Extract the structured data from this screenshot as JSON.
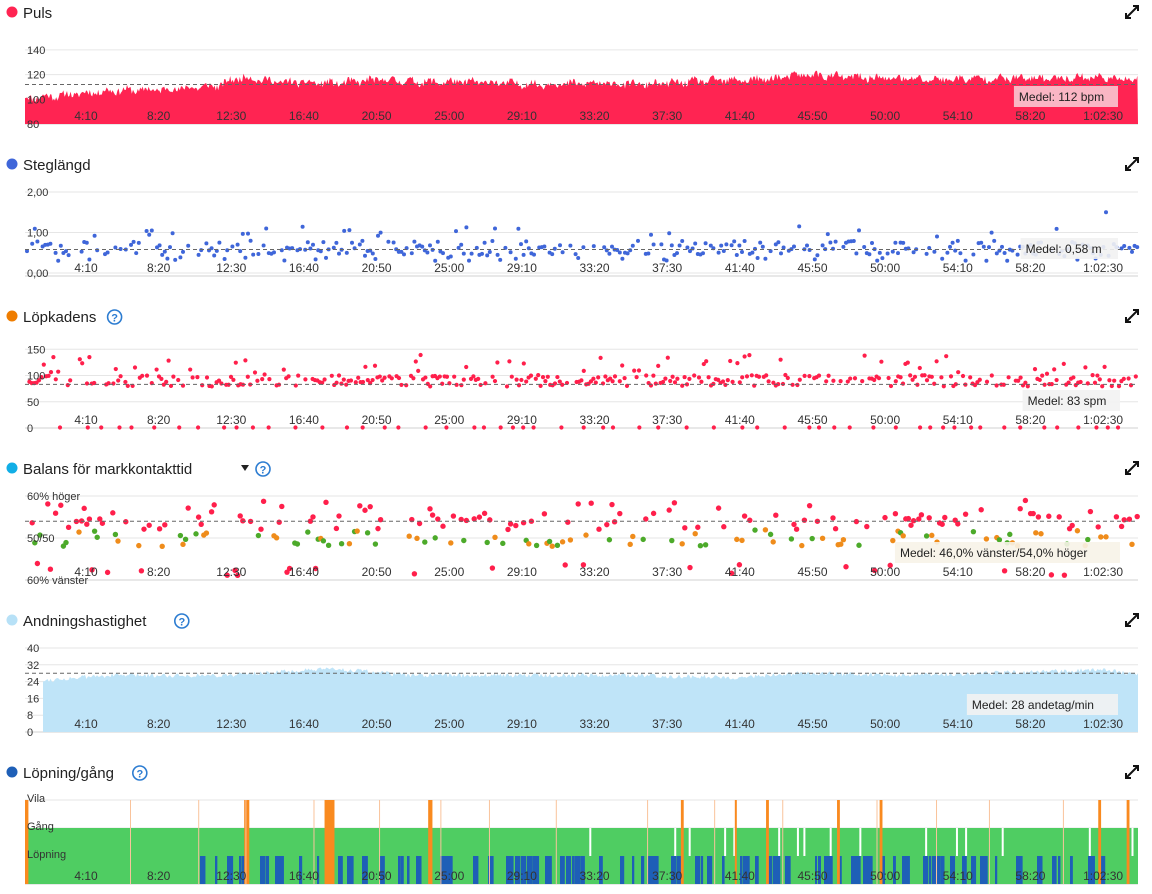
{
  "time_ticks": [
    "4:10",
    "8:20",
    "12:30",
    "16:40",
    "20:50",
    "25:00",
    "29:10",
    "33:20",
    "37:30",
    "41:40",
    "45:50",
    "50:00",
    "54:10",
    "58:20",
    "1:02:30"
  ],
  "colors": {
    "grid": "#e6e6e6",
    "tick_text": "#333333",
    "heart": "#ff2452",
    "stride": "#3f66d9",
    "cadence_dot": "#ff1f4b",
    "cadence_icon": "#ef7d00",
    "balance_icon": "#11aee6",
    "balance_red": "#ff1f4b",
    "balance_orange": "#ef8c1b",
    "balance_green": "#4caa2a",
    "resp_icon": "#b7e1f7",
    "resp_fill": "#bfe4f8",
    "walk_icon": "#1e5fb7",
    "run": "#1e5fb7",
    "walk": "#4fcd62",
    "rest_orange": "#f98a1f",
    "help": "#2c7cd1"
  },
  "charts": [
    {
      "id": "heart_rate",
      "title": "Puls",
      "help": false,
      "dropdown": false,
      "y_ticks": [
        "140",
        "120",
        "100",
        "80"
      ],
      "mean_label": "Medel: 112 bpm",
      "chart_data": {
        "type": "area",
        "title": "Puls",
        "unit": "bpm",
        "xlim_seconds": [
          0,
          3920
        ],
        "ylim": [
          80,
          148
        ],
        "mean": 112,
        "keyframes": [
          [
            0,
            101
          ],
          [
            120,
            103
          ],
          [
            300,
            107
          ],
          [
            500,
            108
          ],
          [
            680,
            111
          ],
          [
            760,
            118
          ],
          [
            900,
            114
          ],
          [
            1100,
            113
          ],
          [
            1250,
            116
          ],
          [
            1400,
            114
          ],
          [
            1600,
            114
          ],
          [
            1800,
            112
          ],
          [
            2000,
            113
          ],
          [
            2200,
            112
          ],
          [
            2400,
            115
          ],
          [
            2600,
            116
          ],
          [
            2750,
            120
          ],
          [
            2900,
            118
          ],
          [
            3050,
            117
          ],
          [
            3200,
            116
          ],
          [
            3400,
            117
          ],
          [
            3600,
            117
          ],
          [
            3750,
            118
          ],
          [
            3920,
            116
          ]
        ]
      }
    },
    {
      "id": "stride_length",
      "title": "Steglängd",
      "help": false,
      "dropdown": false,
      "y_ticks": [
        "2,00",
        "1,00",
        "0,00"
      ],
      "mean_label": "Medel: 0,58 m",
      "chart_data": {
        "type": "scatter",
        "title": "Steglängd",
        "unit": "m",
        "xlim_seconds": [
          0,
          3920
        ],
        "ylim": [
          0,
          2.0
        ],
        "mean": 0.58,
        "typical_range": [
          0.3,
          1.1
        ]
      }
    },
    {
      "id": "cadence",
      "title": "Löpkadens",
      "help": true,
      "dropdown": false,
      "y_ticks": [
        "150",
        "100",
        "50",
        "0"
      ],
      "mean_label": "Medel: 83 spm",
      "chart_data": {
        "type": "scatter",
        "title": "Löpkadens",
        "unit": "spm",
        "xlim_seconds": [
          0,
          3920
        ],
        "ylim": [
          0,
          160
        ],
        "mean": 83,
        "typical_range": [
          70,
          130
        ]
      }
    },
    {
      "id": "gct_balance",
      "title": "Balans för markkontakttid",
      "help": true,
      "dropdown": true,
      "y_ticks": [
        "60% vänster",
        "50/50",
        "60% höger"
      ],
      "mean_label": "Medel: 46,0% vänster/54,0% höger",
      "chart_data": {
        "type": "scatter",
        "title": "Balans för markkontakttid",
        "unit": "% left",
        "xlim_seconds": [
          0,
          3920
        ],
        "ylim": [
          40,
          60
        ],
        "mean": 46.0,
        "categories": [
          "red",
          "orange",
          "green"
        ]
      }
    },
    {
      "id": "respiration",
      "title": "Andningshastighet",
      "help": true,
      "dropdown": false,
      "y_ticks": [
        "40",
        "32",
        "24",
        "16",
        "8",
        "0"
      ],
      "mean_label": "Medel: 28 andetag/min",
      "chart_data": {
        "type": "area",
        "title": "Andningshastighet",
        "unit": "andetag/min",
        "xlim_seconds": [
          0,
          3920
        ],
        "ylim": [
          0,
          40
        ],
        "mean": 28,
        "keyframes": [
          [
            0,
            24
          ],
          [
            300,
            27
          ],
          [
            700,
            27
          ],
          [
            950,
            29
          ],
          [
            1100,
            30
          ],
          [
            1350,
            27
          ],
          [
            1700,
            27
          ],
          [
            2100,
            27
          ],
          [
            2500,
            26
          ],
          [
            2750,
            28
          ],
          [
            3100,
            27
          ],
          [
            3400,
            28
          ],
          [
            3650,
            29
          ],
          [
            3800,
            30
          ],
          [
            3920,
            27
          ]
        ]
      }
    },
    {
      "id": "run_walk",
      "title": "Löpning/gång",
      "help": true,
      "dropdown": false,
      "y_ticks": [
        "Vila",
        "Gång",
        "Löpning"
      ],
      "mean_label": "",
      "chart_data": {
        "type": "area",
        "title": "Löpning/gång",
        "categories": [
          "Vila",
          "Gång",
          "Löpning"
        ],
        "xlim_seconds": [
          0,
          3920
        ],
        "rest_segments_seconds": [
          [
            0,
            12
          ],
          [
            772,
            790
          ],
          [
            1055,
            1090
          ],
          [
            1420,
            1435
          ],
          [
            2310,
            2320
          ],
          [
            2500,
            2505
          ],
          [
            2610,
            2620
          ],
          [
            2860,
            2870
          ],
          [
            3010,
            3020
          ],
          [
            3780,
            3790
          ],
          [
            3880,
            3890
          ]
        ]
      }
    }
  ]
}
